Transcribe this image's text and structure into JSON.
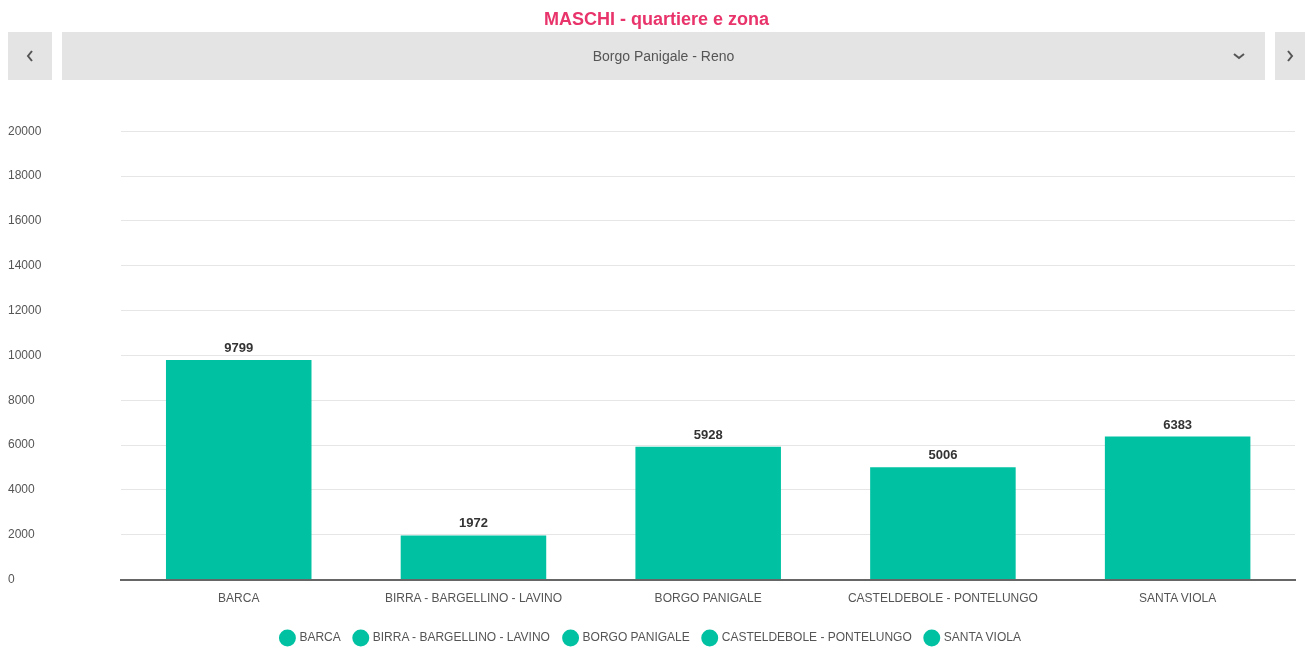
{
  "chart_data": {
    "type": "bar",
    "title": "MASCHI - quartiere e zona",
    "subtitle": "Borgo Panigale - Reno",
    "categories": [
      "BARCA",
      "BIRRA - BARGELLINO - LAVINO",
      "BORGO PANIGALE",
      "CASTELDEBOLE - PONTELUNGO",
      "SANTA VIOLA"
    ],
    "series": [
      {
        "name": "BARCA",
        "color": "#00c2a3",
        "values": [
          9799,
          null,
          null,
          null,
          null
        ]
      },
      {
        "name": "BIRRA - BARGELLINO - LAVINO",
        "color": "#00c2a3",
        "values": [
          null,
          1972,
          null,
          null,
          null
        ]
      },
      {
        "name": "BORGO PANIGALE",
        "color": "#00c2a3",
        "values": [
          null,
          null,
          5928,
          null,
          null
        ]
      },
      {
        "name": "CASTELDEBOLE - PONTELUNGO",
        "color": "#00c2a3",
        "values": [
          null,
          null,
          null,
          5006,
          null
        ]
      },
      {
        "name": "SANTA VIOLA",
        "color": "#00c2a3",
        "values": [
          null,
          null,
          null,
          null,
          6383
        ]
      }
    ],
    "ylim": [
      0,
      20000
    ],
    "yticks": [
      0,
      2000,
      4000,
      6000,
      8000,
      10000,
      12000,
      14000,
      16000,
      18000,
      20000
    ],
    "grid": "y",
    "legend": "bottom",
    "data_labels": true
  }
}
